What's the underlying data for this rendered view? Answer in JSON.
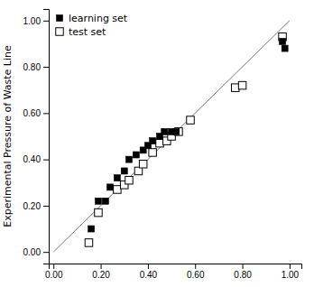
{
  "chart_data": {
    "type": "scatter",
    "ylabel": "Experimental Pressure of Waste Line",
    "xlim": [
      -0.02,
      1.05
    ],
    "ylim": [
      -0.05,
      1.05
    ],
    "xticks": [
      {
        "value": 0.0,
        "label": "0.00"
      },
      {
        "value": 0.2,
        "label": "0.20"
      },
      {
        "value": 0.4,
        "label": "0.40"
      },
      {
        "value": 0.6,
        "label": "0.60"
      },
      {
        "value": 0.8,
        "label": "0.80"
      },
      {
        "value": 1.0,
        "label": "1.00"
      }
    ],
    "yticks": [
      {
        "value": 0.0,
        "label": "0.00"
      },
      {
        "value": 0.2,
        "label": "0.20"
      },
      {
        "value": 0.4,
        "label": "0.40"
      },
      {
        "value": 0.6,
        "label": "0.60"
      },
      {
        "value": 0.8,
        "label": "0.80"
      },
      {
        "value": 1.0,
        "label": "1.00"
      }
    ],
    "legend": "upper left",
    "series": [
      {
        "type": "line",
        "color": "#777777",
        "x": [
          0.0,
          1.0
        ],
        "values": [
          0.0,
          1.0
        ]
      },
      {
        "name": "learning set",
        "type": "scatter",
        "color": "#000000",
        "marker": "square",
        "x": [
          0.16,
          0.19,
          0.22,
          0.24,
          0.27,
          0.3,
          0.32,
          0.35,
          0.38,
          0.4,
          0.42,
          0.45,
          0.47,
          0.5,
          0.52,
          0.97,
          0.98
        ],
        "values": [
          0.1,
          0.22,
          0.22,
          0.28,
          0.32,
          0.35,
          0.4,
          0.42,
          0.44,
          0.46,
          0.48,
          0.5,
          0.52,
          0.52,
          0.52,
          0.91,
          0.88
        ]
      },
      {
        "name": "test set",
        "type": "scatter",
        "color": "#000000",
        "marker": "square-open",
        "x": [
          0.15,
          0.19,
          0.27,
          0.3,
          0.32,
          0.36,
          0.38,
          0.42,
          0.45,
          0.48,
          0.5,
          0.53,
          0.58,
          0.77,
          0.8,
          0.97
        ],
        "values": [
          0.04,
          0.17,
          0.27,
          0.29,
          0.31,
          0.35,
          0.38,
          0.43,
          0.47,
          0.48,
          0.5,
          0.52,
          0.57,
          0.71,
          0.72,
          0.93
        ]
      }
    ]
  }
}
